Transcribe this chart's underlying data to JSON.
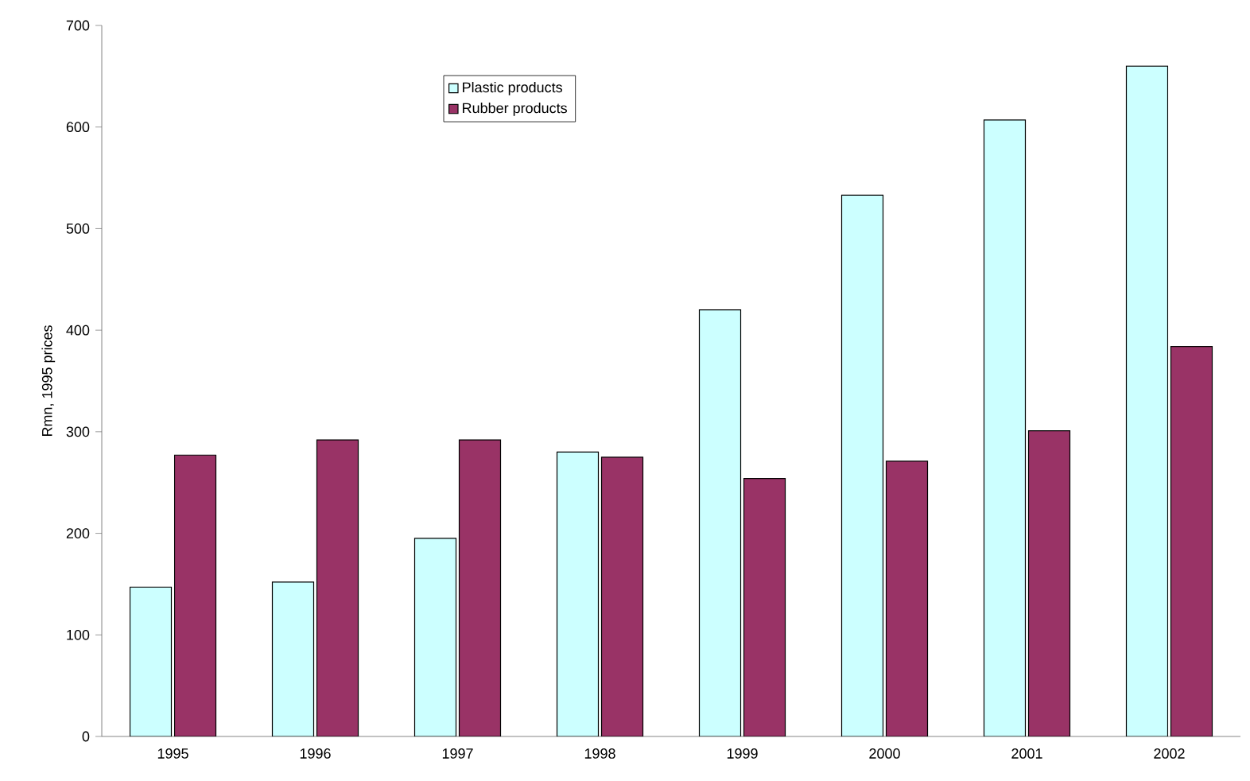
{
  "chart_data": {
    "type": "bar",
    "ylabel": "Rmn, 1995 prices",
    "categories": [
      "1995",
      "1996",
      "1997",
      "1998",
      "1999",
      "2000",
      "2001",
      "2002"
    ],
    "series": [
      {
        "name": "Plastic products",
        "color": "#ccffff",
        "values": [
          147,
          152,
          195,
          280,
          420,
          533,
          607,
          660
        ]
      },
      {
        "name": "Rubber products",
        "color": "#993366",
        "values": [
          277,
          292,
          292,
          275,
          254,
          271,
          301,
          384
        ]
      }
    ],
    "ylim": [
      0,
      700
    ],
    "yticks": [
      0,
      100,
      200,
      300,
      400,
      500,
      600,
      700
    ],
    "grid": false,
    "legend": "top"
  }
}
